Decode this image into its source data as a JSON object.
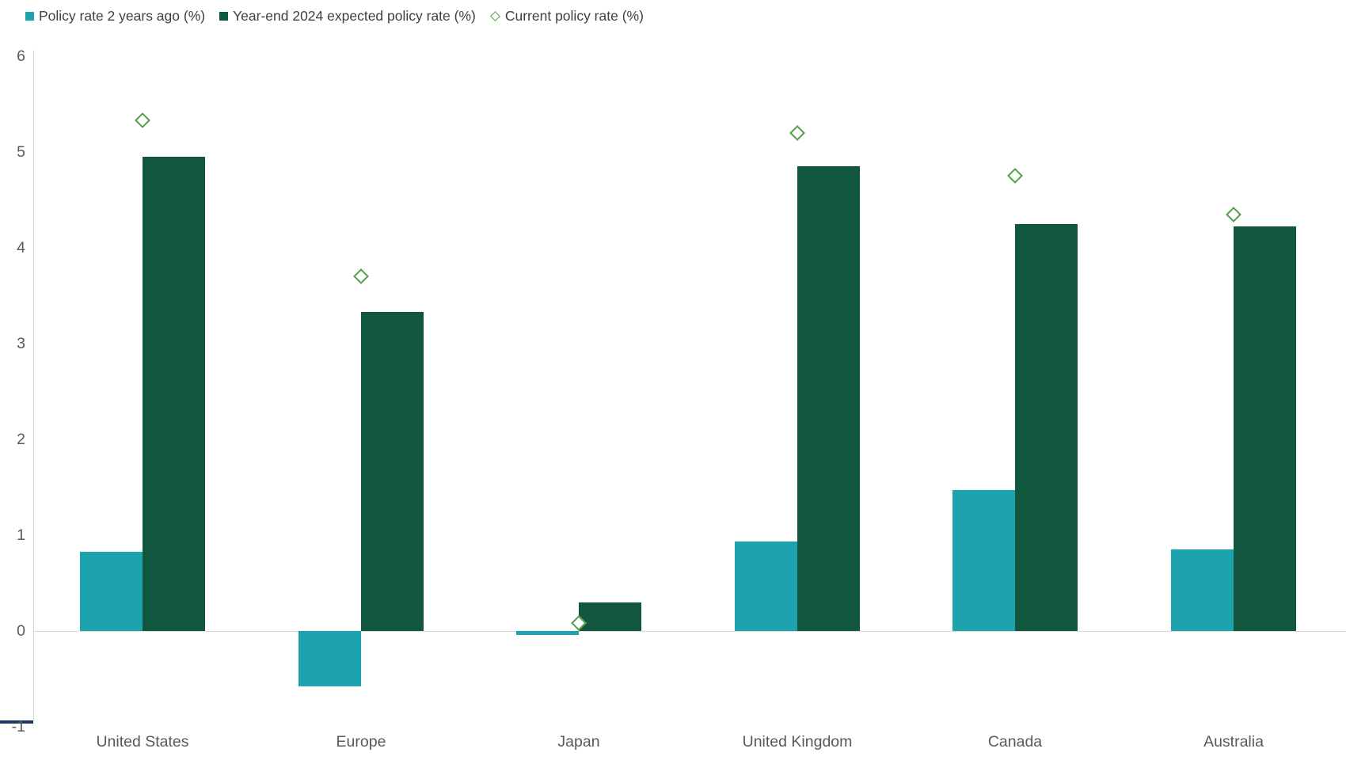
{
  "legend": [
    {
      "label": "Policy rate 2 years ago (%)",
      "marker": "square",
      "color": "#1CA3AD"
    },
    {
      "label": "Year-end 2024 expected policy rate (%)",
      "marker": "square",
      "color": "#115740"
    },
    {
      "label": "Current policy rate (%)",
      "marker": "diamond",
      "color": "#529E49"
    }
  ],
  "chart_data": {
    "type": "bar",
    "title": "",
    "categories": [
      "United States",
      "Europe",
      "Japan",
      "United Kingdom",
      "Canada",
      "Australia"
    ],
    "series": [
      {
        "name": "Policy rate 2 years ago (%)",
        "type": "bar",
        "color": "#1CA3AD",
        "values": [
          0.83,
          -0.58,
          -0.04,
          0.93,
          1.47,
          0.85
        ]
      },
      {
        "name": "Year-end 2024 expected policy rate (%)",
        "type": "bar",
        "color": "#115740",
        "values": [
          4.95,
          3.33,
          0.3,
          4.85,
          4.25,
          4.22
        ]
      },
      {
        "name": "Current policy rate (%)",
        "type": "scatter",
        "marker": "diamond",
        "marker_fill": "#ffffff",
        "color": "#529E49",
        "values": [
          5.33,
          3.7,
          0.08,
          5.2,
          4.75,
          4.35
        ]
      }
    ],
    "xlabel": "",
    "ylabel": "",
    "ylim": [
      -1,
      6
    ],
    "yticks": [
      6,
      5,
      4,
      3,
      2,
      1,
      0,
      -1
    ],
    "grid": "zero-baseline-only",
    "legend_position": "top-left",
    "axis_color": "#d9d9d9",
    "tick_label_color": "#595959",
    "legend_text_color": "#404040"
  }
}
